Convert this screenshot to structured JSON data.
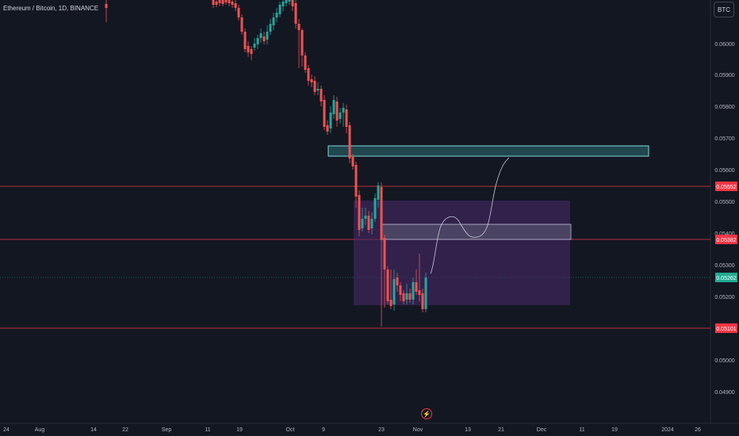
{
  "header": {
    "title": "Ethereum / Bitcoin, 1D, BINANCE",
    "currency_button": "BTC"
  },
  "price_axis": {
    "ticks": [
      "0.06000",
      "0.05900",
      "0.05800",
      "0.05700",
      "0.05600",
      "0.05500",
      "0.05400",
      "0.05300",
      "0.05200",
      "0.05000",
      "0.04900"
    ]
  },
  "time_axis": {
    "ticks": [
      "24",
      "Aug",
      "14",
      "22",
      "Sep",
      "11",
      "19",
      "Oct",
      "9",
      "23",
      "Nov",
      "13",
      "21",
      "Dec",
      "11",
      "19",
      "2024",
      "26"
    ]
  },
  "horizontal_lines": [
    {
      "price": "0.05552",
      "color": "#f23645"
    },
    {
      "price": "0.05382",
      "color": "#f23645"
    },
    {
      "price": "0.05101",
      "color": "#f23645"
    }
  ],
  "current_price": {
    "price": "0.05262",
    "color": "#22ab94"
  },
  "icons": {
    "bottom": "lightning-icon"
  },
  "colors": {
    "bull": "#26a69a",
    "bear": "#ef5350",
    "zone": "#2c6e73",
    "range": "#4a2a6e",
    "background": "#131722"
  }
}
